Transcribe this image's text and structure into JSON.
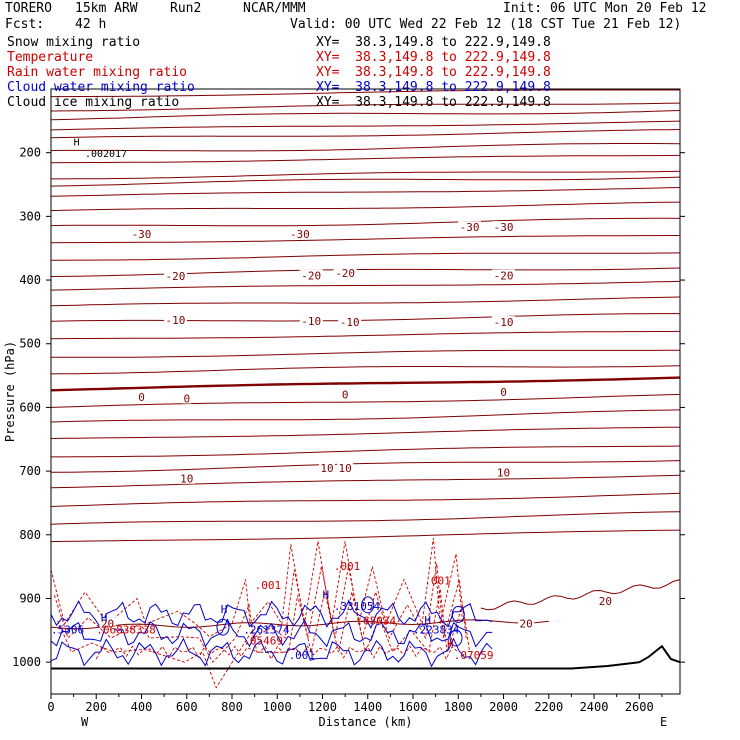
{
  "header": {
    "model": "TORERO",
    "resolution": "15km ARW",
    "run": "Run2",
    "org": "NCAR/MMM",
    "init": "Init: 06 UTC Mon 20 Feb 12",
    "fcst_label": "Fcst:",
    "fcst_value": "42 h",
    "valid": "Valid: 00 UTC Wed 22 Feb 12 (18 CST Tue 21 Feb 12)"
  },
  "legend": [
    {
      "label": "Snow mixing ratio",
      "xy": "XY=  38.3,149.8 to 222.9,149.8",
      "color": "#000000",
      "xy_color": "#000000"
    },
    {
      "label": "Temperature",
      "xy": "XY=  38.3,149.8 to 222.9,149.8",
      "color": "#cc0000",
      "xy_color": "#cc0000"
    },
    {
      "label": "Rain water mixing ratio",
      "xy": "XY=  38.3,149.8 to 222.9,149.8",
      "color": "#cc0000",
      "xy_color": "#cc0000"
    },
    {
      "label": "Cloud water mixing ratio",
      "xy": "XY=  38.3,149.8 to 222.9,149.8",
      "color": "#0000cc",
      "xy_color": "#0000cc"
    },
    {
      "label": "Cloud ice mixing ratio",
      "xy": "XY=  38.3,149.8 to 222.9,149.8",
      "color": "#000000",
      "xy_color": "#000000"
    }
  ],
  "chart_data": {
    "type": "cross-section contour",
    "ylabel": "Pressure (hPa)",
    "xlabel": "Distance (km)",
    "xlim": [
      0,
      2780
    ],
    "ylim": [
      1050,
      100
    ],
    "x_ticks": [
      0,
      200,
      400,
      600,
      800,
      1000,
      1200,
      1400,
      1600,
      1800,
      2000,
      2200,
      2400,
      2600
    ],
    "y_ticks": [
      200,
      300,
      400,
      500,
      600,
      700,
      800,
      900,
      1000
    ],
    "left_end": "W",
    "right_end": "E",
    "temperature_color": "#800000",
    "rain_color": "#cc0000",
    "cloud_water_color": "#0000cc",
    "temperature_isotherms_base_p": [
      112,
      133,
      146,
      164,
      178,
      199,
      216,
      240,
      250,
      268,
      292,
      317,
      342,
      368,
      392,
      415,
      441,
      467,
      493,
      521,
      545,
      572,
      600,
      625,
      650,
      678,
      700,
      725,
      755,
      785,
      812
    ],
    "temperature_labels": [
      {
        "text": "-30",
        "x": 400,
        "p": 328
      },
      {
        "text": "-30",
        "x": 1100,
        "p": 328
      },
      {
        "text": "-30",
        "x": 1850,
        "p": 317
      },
      {
        "text": "-30",
        "x": 2000,
        "p": 317
      },
      {
        "text": "-20",
        "x": 550,
        "p": 394
      },
      {
        "text": "-20",
        "x": 1150,
        "p": 393
      },
      {
        "text": "-20",
        "x": 1300,
        "p": 389
      },
      {
        "text": "-20",
        "x": 2000,
        "p": 393
      },
      {
        "text": "-10",
        "x": 550,
        "p": 463
      },
      {
        "text": "-10",
        "x": 1150,
        "p": 464
      },
      {
        "text": "-10",
        "x": 1320,
        "p": 466
      },
      {
        "text": "-10",
        "x": 2000,
        "p": 466
      },
      {
        "text": "0",
        "x": 400,
        "p": 584
      },
      {
        "text": "0",
        "x": 600,
        "p": 586
      },
      {
        "text": "0",
        "x": 1300,
        "p": 580
      },
      {
        "text": "0",
        "x": 2000,
        "p": 576
      },
      {
        "text": "10",
        "x": 600,
        "p": 712
      },
      {
        "text": "10",
        "x": 1220,
        "p": 695
      },
      {
        "text": "10",
        "x": 1300,
        "p": 695
      },
      {
        "text": "10",
        "x": 2000,
        "p": 702
      },
      {
        "text": "20",
        "x": 2450,
        "p": 904
      },
      {
        "text": "20",
        "x": 2100,
        "p": 939
      },
      {
        "text": "20",
        "x": 250,
        "p": 939
      }
    ],
    "rain_labels": [
      {
        "text": ".001",
        "x": 900,
        "p": 885
      },
      {
        "text": ".001",
        "x": 1250,
        "p": 855
      },
      {
        "text": ".001",
        "x": 1650,
        "p": 878
      },
      {
        "text": ".06838338",
        "x": 200,
        "p": 955
      },
      {
        "text": ".05469",
        "x": 850,
        "p": 972
      },
      {
        "text": ".68034",
        "x": 1350,
        "p": 941
      },
      {
        "text": ".07059",
        "x": 1780,
        "p": 995
      },
      {
        "text": "H",
        "x": 1750,
        "p": 977
      }
    ],
    "cloud_labels": [
      {
        "text": ".5306",
        "x": 0,
        "p": 955
      },
      {
        "text": "H",
        "x": 220,
        "p": 936
      },
      {
        "text": "H",
        "x": 750,
        "p": 923
      },
      {
        "text": ".261374",
        "x": 850,
        "p": 955
      },
      {
        "text": ".331054",
        "x": 1250,
        "p": 918
      },
      {
        "text": "H",
        "x": 1200,
        "p": 900
      },
      {
        "text": ".223834",
        "x": 1600,
        "p": 955
      },
      {
        "text": "H",
        "x": 1650,
        "p": 940
      },
      {
        "text": ".001",
        "x": 1050,
        "p": 995
      }
    ],
    "ice_labels": [
      {
        "text": "H",
        "x": 100,
        "p": 189
      },
      {
        "text": ".002017",
        "x": 150,
        "p": 207
      }
    ]
  }
}
